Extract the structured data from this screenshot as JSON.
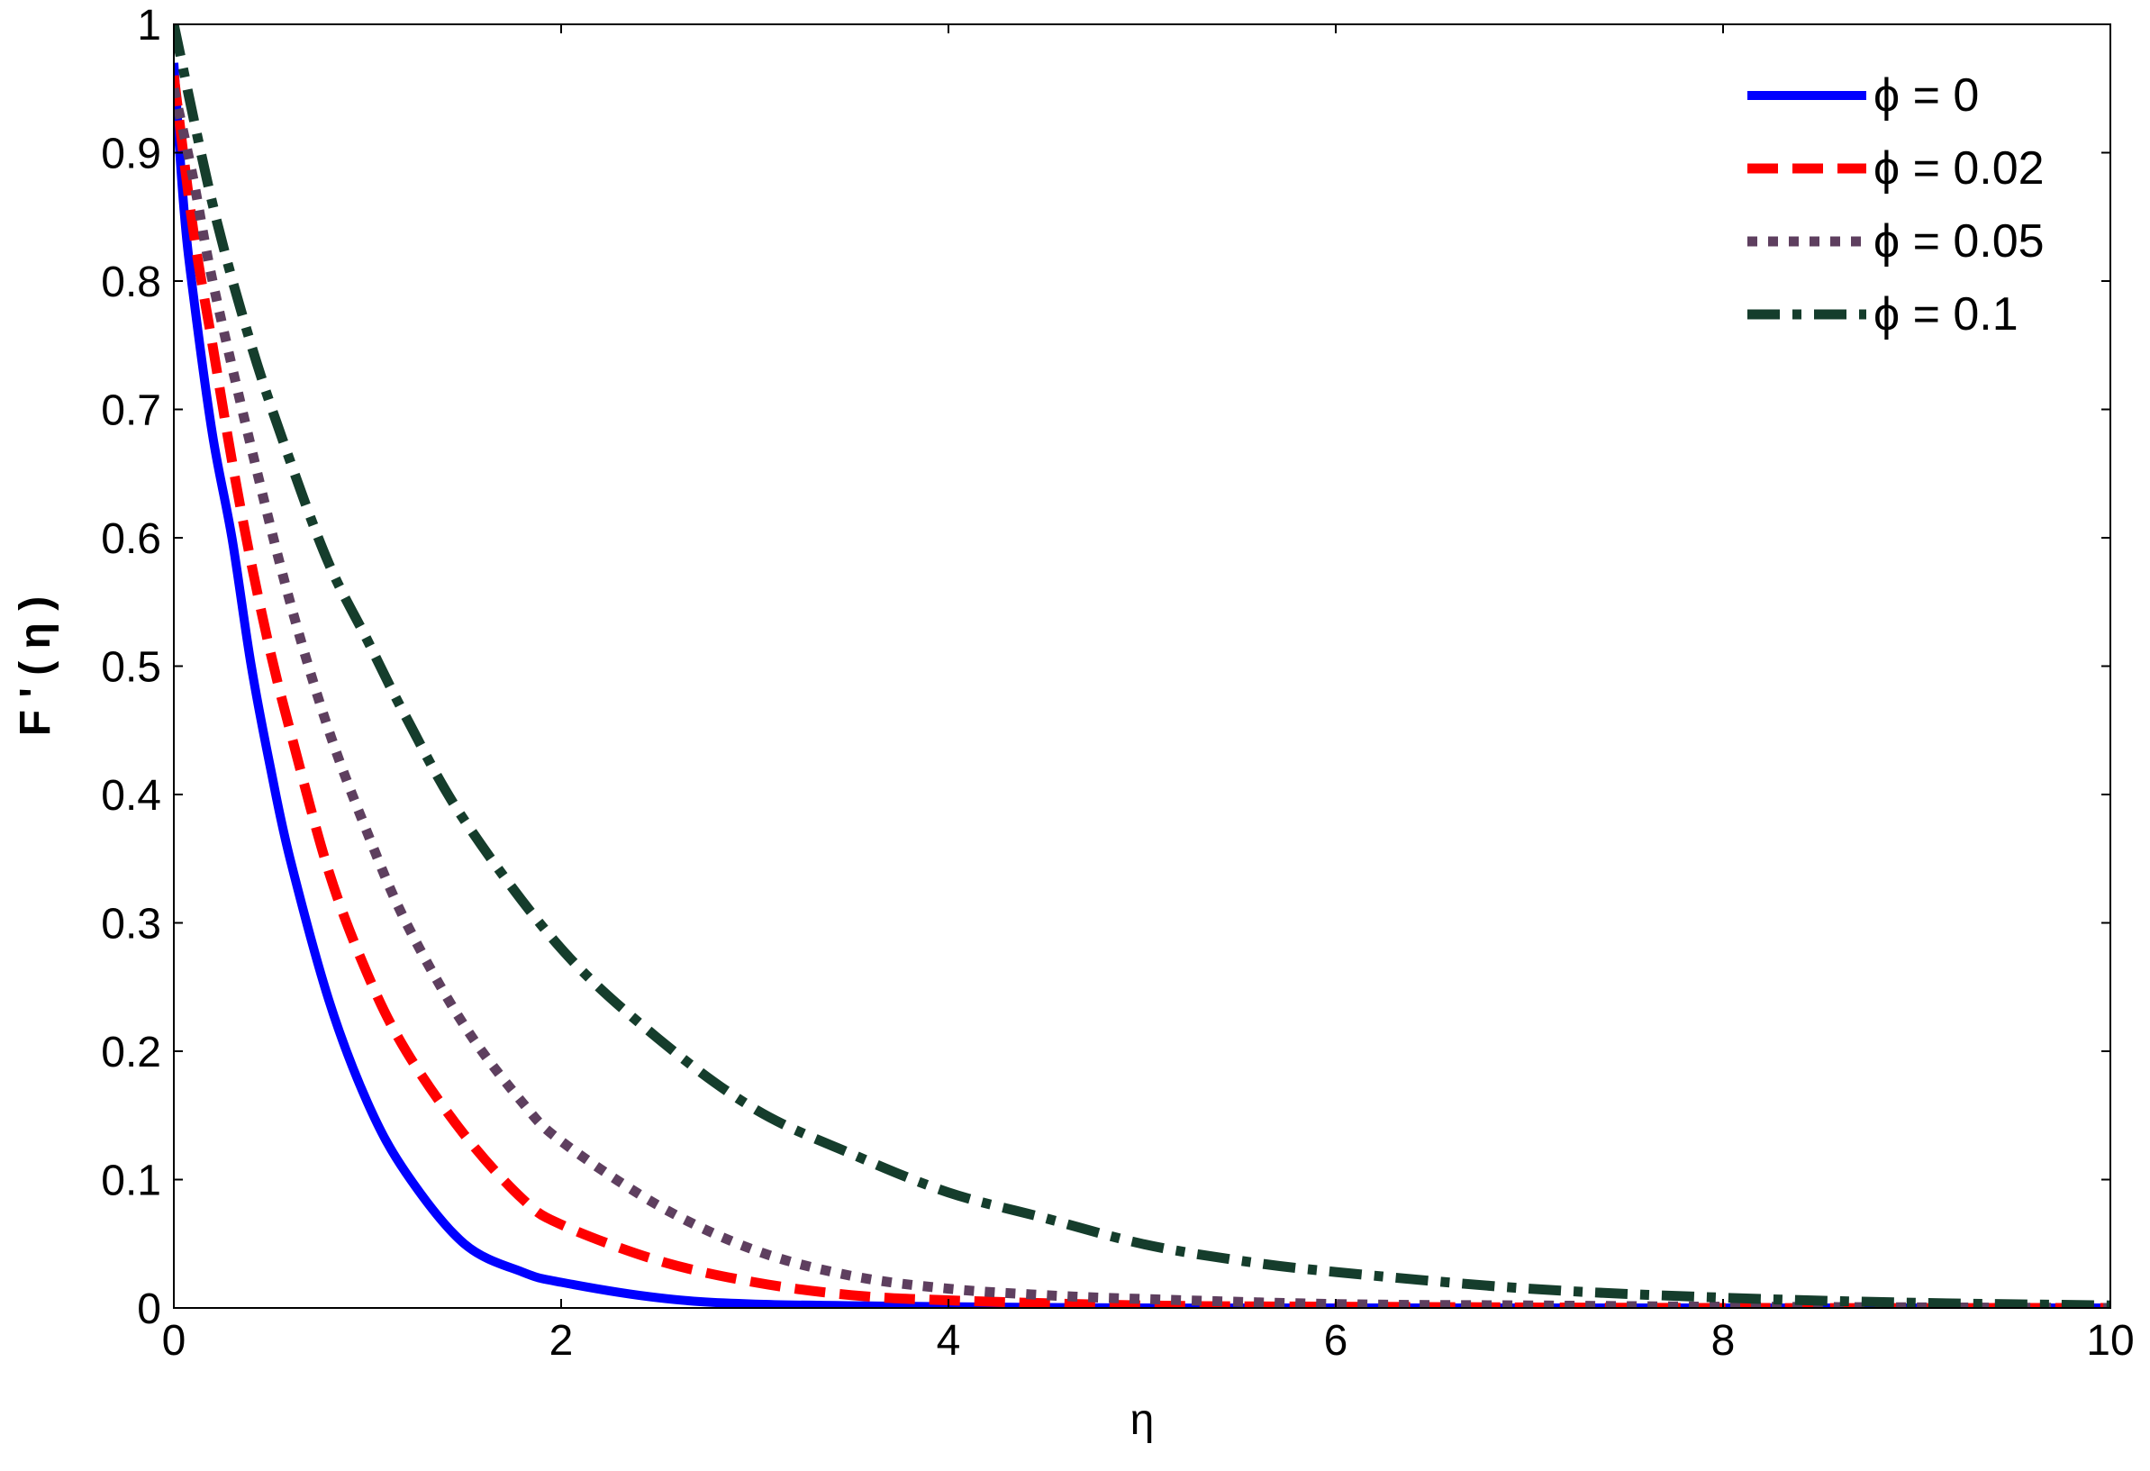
{
  "chart_data": {
    "type": "line",
    "title": "",
    "xlabel": "η",
    "ylabel": "F ' ( η )",
    "xlim": [
      0,
      10
    ],
    "ylim": [
      0,
      1
    ],
    "xticks": [
      "0",
      "2",
      "4",
      "6",
      "8",
      "10"
    ],
    "yticks": [
      "0",
      "0.1",
      "0.2",
      "0.3",
      "0.4",
      "0.5",
      "0.6",
      "0.7",
      "0.8",
      "0.9",
      "1"
    ],
    "grid": false,
    "legend_position": "top-right",
    "series": [
      {
        "name": "ϕ = 0",
        "color": "#0000ff",
        "style": "solid",
        "x": [
          0,
          0.05,
          0.1,
          0.2,
          0.3,
          0.4,
          0.5,
          0.6,
          0.8,
          1.0,
          1.2,
          1.5,
          1.8,
          2.0,
          2.5,
          3.0,
          4.0,
          5.0,
          6.0,
          8.0,
          10.0
        ],
        "y": [
          0.97,
          0.86,
          0.79,
          0.68,
          0.6,
          0.5,
          0.42,
          0.35,
          0.24,
          0.16,
          0.105,
          0.05,
          0.028,
          0.02,
          0.008,
          0.003,
          0.001,
          0.0,
          0.0,
          0.0,
          0.0
        ]
      },
      {
        "name": "ϕ = 0.02",
        "color": "#ff0000",
        "style": "dashed",
        "x": [
          0,
          0.1,
          0.2,
          0.3,
          0.4,
          0.5,
          0.6,
          0.8,
          1.0,
          1.2,
          1.5,
          1.8,
          2.0,
          2.5,
          3.0,
          3.5,
          4.0,
          5.0,
          6.0,
          8.0,
          10.0
        ],
        "y": [
          0.96,
          0.84,
          0.75,
          0.66,
          0.58,
          0.51,
          0.45,
          0.34,
          0.26,
          0.2,
          0.135,
          0.085,
          0.065,
          0.037,
          0.02,
          0.01,
          0.006,
          0.002,
          0.001,
          0.0,
          0.0
        ]
      },
      {
        "name": "ϕ = 0.05",
        "color": "#5e3f5f",
        "style": "dotted",
        "x": [
          0,
          0.1,
          0.2,
          0.4,
          0.6,
          0.8,
          1.0,
          1.2,
          1.5,
          1.8,
          2.0,
          2.5,
          3.0,
          3.5,
          4.0,
          4.5,
          5.0,
          6.0,
          7.0,
          8.0,
          10.0
        ],
        "y": [
          0.95,
          0.88,
          0.8,
          0.67,
          0.55,
          0.45,
          0.37,
          0.3,
          0.22,
          0.16,
          0.13,
          0.08,
          0.045,
          0.025,
          0.015,
          0.01,
          0.007,
          0.003,
          0.002,
          0.001,
          0.0
        ]
      },
      {
        "name": "ϕ = 0.1",
        "color": "#153d2c",
        "style": "dashdot",
        "x": [
          0,
          0.2,
          0.4,
          0.6,
          0.8,
          1.0,
          1.2,
          1.5,
          2.0,
          2.5,
          3.0,
          3.5,
          4.0,
          4.5,
          5.0,
          5.5,
          6.0,
          7.0,
          8.0,
          9.0,
          10.0
        ],
        "y": [
          1.0,
          0.86,
          0.75,
          0.66,
          0.58,
          0.52,
          0.46,
          0.38,
          0.28,
          0.21,
          0.155,
          0.12,
          0.09,
          0.07,
          0.05,
          0.037,
          0.028,
          0.015,
          0.008,
          0.004,
          0.002
        ]
      }
    ]
  }
}
